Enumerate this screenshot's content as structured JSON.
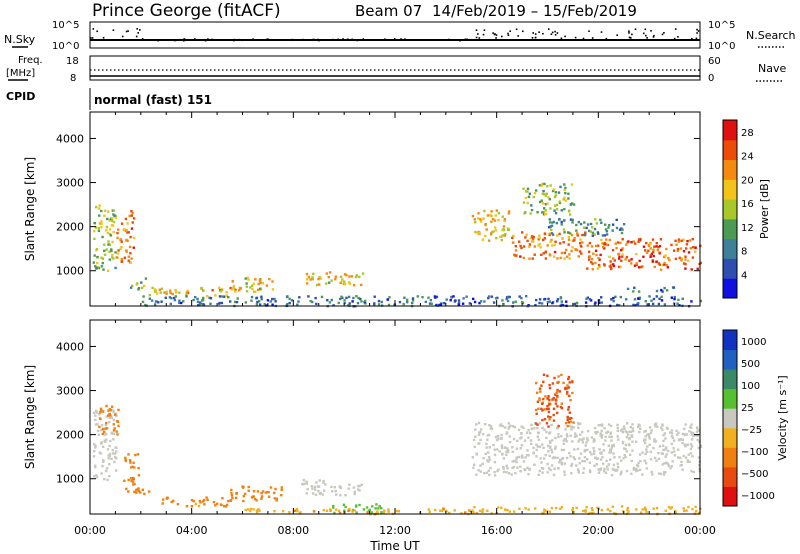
{
  "header": {
    "station": "Prince George (fitACF)",
    "beam": "Beam 07",
    "dates": "14/Feb/2019 – 15/Feb/2019"
  },
  "top_panels": {
    "nsky_label": "N.Sky",
    "nsky_ticks": [
      "10^5",
      "10^0"
    ],
    "nsearch_label": "N.Search",
    "nsearch_ticks": [
      "10^5",
      "10^0"
    ],
    "freq_label_1": "Freq.",
    "freq_label_2": "[MHz]",
    "freq_ticks": [
      "18",
      "8"
    ],
    "nave_label": "Nave",
    "nave_ticks": [
      "60",
      "0"
    ],
    "cpid_label": "CPID",
    "cpid_value": "normal (fast) 151"
  },
  "colors": {
    "power_scale": [
      "#1010e0",
      "#2c4fb0",
      "#3f7f9a",
      "#4d9a55",
      "#a8c82a",
      "#f3c31a",
      "#f58a10",
      "#ee4a08",
      "#e01010"
    ],
    "velocity_scale": [
      "#1034c0",
      "#2060c0",
      "#3a8a6a",
      "#55c030",
      "#c8c8c0",
      "#f0b020",
      "#f08010",
      "#e84a10",
      "#e01010"
    ],
    "velocity_ground": "#c8c8c0"
  },
  "chart_data": [
    {
      "type": "heatmap",
      "name_panel": "power",
      "ylabel": "Slant Range [km]",
      "yticks": [
        "1000",
        "2000",
        "3000",
        "4000"
      ],
      "ylim": [
        200,
        4600
      ],
      "xticks": [
        "00:00",
        "04:00",
        "08:00",
        "12:00",
        "16:00",
        "20:00",
        "00:00"
      ],
      "xlim_hours": [
        0,
        24
      ],
      "colorbar_label": "Power [dB]",
      "colorbar_ticks": [
        "4",
        "8",
        "12",
        "16",
        "20",
        "24",
        "28"
      ],
      "colorbar_range": [
        0,
        30
      ],
      "regions": [
        {
          "t0": 0.1,
          "t1": 1.0,
          "r0": 1000,
          "r1": 2600,
          "level": 14
        },
        {
          "t0": 1.0,
          "t1": 1.7,
          "r0": 1200,
          "r1": 2400,
          "level": 22
        },
        {
          "t0": 1.5,
          "t1": 2.2,
          "r0": 600,
          "r1": 850,
          "level": 12
        },
        {
          "t0": 2.3,
          "t1": 6.0,
          "r0": 450,
          "r1": 650,
          "level": 20
        },
        {
          "t0": 5.5,
          "t1": 7.2,
          "r0": 550,
          "r1": 900,
          "level": 18
        },
        {
          "t0": 8.4,
          "t1": 10.8,
          "r0": 700,
          "r1": 1000,
          "level": 18
        },
        {
          "t0": 2.0,
          "t1": 13.5,
          "r0": 220,
          "r1": 450,
          "level": 8
        },
        {
          "t0": 15.0,
          "t1": 16.5,
          "r0": 1700,
          "r1": 2400,
          "level": 18
        },
        {
          "t0": 16.5,
          "t1": 19.5,
          "r0": 1300,
          "r1": 1900,
          "level": 22
        },
        {
          "t0": 19.5,
          "t1": 24.0,
          "r0": 1050,
          "r1": 1750,
          "level": 24
        },
        {
          "t0": 17.0,
          "t1": 19.0,
          "r0": 2300,
          "r1": 3000,
          "level": 14
        },
        {
          "t0": 18.0,
          "t1": 21.0,
          "r0": 1800,
          "r1": 2200,
          "level": 10
        },
        {
          "t0": 21.0,
          "t1": 23.0,
          "r0": 550,
          "r1": 650,
          "level": 8
        },
        {
          "t0": 13.5,
          "t1": 24.0,
          "r0": 220,
          "r1": 450,
          "level": 6
        }
      ]
    },
    {
      "type": "heatmap",
      "name_panel": "velocity",
      "ylabel": "Slant Range [km]",
      "yticks": [
        "1000",
        "2000",
        "3000",
        "4000"
      ],
      "ylim": [
        200,
        4600
      ],
      "xticks": [
        "00:00",
        "04:00",
        "08:00",
        "12:00",
        "16:00",
        "20:00",
        "00:00"
      ],
      "xlim_hours": [
        0,
        24
      ],
      "xlabel": "Time UT",
      "colorbar_label": "Velocity [m s⁻¹]",
      "colorbar_ticks": [
        "1000",
        "500",
        "100",
        "25",
        "−25",
        "−100",
        "−500",
        "−1000"
      ],
      "regions": [
        {
          "t0": 0.1,
          "t1": 1.0,
          "r0": 1000,
          "r1": 2600,
          "vel": "ground"
        },
        {
          "t0": 0.3,
          "t1": 1.1,
          "r0": 2000,
          "r1": 2700,
          "vel": -300
        },
        {
          "t0": 1.3,
          "t1": 1.9,
          "r0": 700,
          "r1": 1600,
          "vel": -400
        },
        {
          "t0": 1.7,
          "t1": 2.3,
          "r0": 600,
          "r1": 800,
          "vel": -200
        },
        {
          "t0": 2.5,
          "t1": 5.5,
          "r0": 400,
          "r1": 600,
          "vel": -150
        },
        {
          "t0": 5.5,
          "t1": 7.5,
          "r0": 500,
          "r1": 850,
          "vel": -200
        },
        {
          "t0": 8.3,
          "t1": 10.7,
          "r0": 650,
          "r1": 1000,
          "vel": "ground"
        },
        {
          "t0": 9.5,
          "t1": 11.5,
          "r0": 220,
          "r1": 450,
          "vel": 50
        },
        {
          "t0": 6.0,
          "t1": 15.0,
          "r0": 220,
          "r1": 350,
          "vel": -80
        },
        {
          "t0": 15.0,
          "t1": 24.0,
          "r0": 1100,
          "r1": 2300,
          "vel": "ground"
        },
        {
          "t0": 17.5,
          "t1": 19.0,
          "r0": 2200,
          "r1": 3400,
          "vel": -600
        },
        {
          "t0": 15.0,
          "t1": 24.0,
          "r0": 220,
          "r1": 400,
          "vel": -60
        }
      ]
    }
  ]
}
